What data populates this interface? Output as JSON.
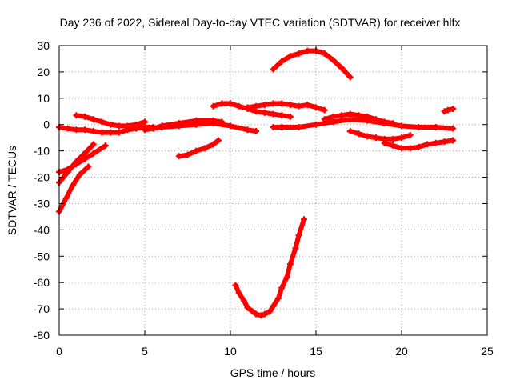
{
  "chart_data": {
    "type": "scatter",
    "title": "Day 236 of 2022, Sidereal Day-to-day VTEC variation (SDTVAR) for receiver hlfx",
    "xlabel": "GPS time / hours",
    "ylabel": "SDTVAR / TECUs",
    "xlim": [
      0,
      25
    ],
    "ylim": [
      -80,
      30
    ],
    "xticks": [
      0,
      5,
      10,
      15,
      20,
      25
    ],
    "yticks": [
      -80,
      -70,
      -60,
      -50,
      -40,
      -30,
      -20,
      -10,
      0,
      10,
      20,
      30
    ],
    "grid": true,
    "legend": "none",
    "color": "#ff0000",
    "series": [
      {
        "x": [
          0.0,
          0.5,
          1.0,
          1.4,
          2.0
        ],
        "y": [
          -22,
          -18,
          -14,
          -11.5,
          -7.5
        ]
      },
      {
        "x": [
          0.0,
          0.5,
          1.0,
          1.5,
          2.0,
          2.7
        ],
        "y": [
          -18,
          -17,
          -15,
          -13,
          -11,
          -8
        ]
      },
      {
        "x": [
          0.0,
          0.4,
          0.8,
          1.2,
          1.7
        ],
        "y": [
          -33,
          -28,
          -23,
          -19,
          -16
        ]
      },
      {
        "x": [
          0.0,
          0.5,
          1.0,
          1.5,
          2.0,
          2.5,
          3.0,
          3.5,
          4.0,
          4.5,
          5.0,
          5.5
        ],
        "y": [
          -1,
          -1.5,
          -2,
          -2,
          -2.5,
          -3,
          -3,
          -3,
          -2,
          -1.5,
          -1,
          -1
        ]
      },
      {
        "x": [
          1.0,
          1.5,
          2.0,
          2.5,
          3.0,
          3.5,
          4.0,
          4.5,
          5.0
        ],
        "y": [
          3.5,
          3,
          2,
          1,
          0,
          -0.5,
          -0.5,
          0,
          1
        ]
      },
      {
        "x": [
          5.0,
          5.5,
          6.0,
          7.0,
          8.0,
          9.0,
          10.0,
          11.0,
          11.5
        ],
        "y": [
          -2,
          -1.5,
          -1,
          -0.5,
          0,
          0.5,
          -0.5,
          -2,
          -2.5
        ]
      },
      {
        "x": [
          5.5,
          6.0,
          7.0,
          8.0,
          8.5,
          9.0
        ],
        "y": [
          -1.5,
          -0.5,
          0.5,
          1,
          1,
          1
        ]
      },
      {
        "x": [
          6.0,
          7.0,
          8.0,
          9.0,
          9.5
        ],
        "y": [
          -0.5,
          0.5,
          1.5,
          1.5,
          1
        ]
      },
      {
        "x": [
          7.0,
          7.5,
          8.0,
          8.5,
          9.0,
          9.3
        ],
        "y": [
          -12,
          -11.5,
          -10,
          -9,
          -7.5,
          -6
        ]
      },
      {
        "x": [
          9.0,
          9.5,
          10.0,
          10.5,
          11.0,
          11.5,
          12.0,
          12.5,
          13.0,
          13.5
        ],
        "y": [
          7,
          8,
          8,
          7,
          6,
          5,
          4.5,
          4,
          3.5,
          3
        ]
      },
      {
        "x": [
          11.0,
          11.5,
          12.0,
          12.5,
          13.0,
          13.5,
          14.0,
          14.5,
          15.0,
          15.5
        ],
        "y": [
          6.5,
          7,
          7.5,
          8,
          8,
          7.5,
          7,
          7.5,
          6.5,
          5.5
        ]
      },
      {
        "x": [
          12.5,
          13.0,
          13.5,
          14.0,
          14.5,
          15.0,
          15.5,
          16.0,
          16.5,
          17.0
        ],
        "y": [
          21,
          24,
          26,
          27,
          28,
          28,
          27,
          24.5,
          21.5,
          18
        ]
      },
      {
        "x": [
          10.3,
          10.5,
          10.8,
          11.0,
          11.3,
          11.5,
          11.8,
          12.0,
          12.3,
          12.5,
          12.8,
          13.0,
          13.3,
          13.5,
          13.8,
          14.0,
          14.3
        ],
        "y": [
          -61,
          -64,
          -67,
          -69.5,
          -71,
          -72,
          -72.5,
          -72,
          -71,
          -69,
          -66,
          -62,
          -58,
          -53,
          -47,
          -42,
          -36
        ]
      },
      {
        "x": [
          12.5,
          13.0,
          14.0,
          15.0,
          16.0,
          17.0,
          18.0,
          19.0,
          20.0,
          21.0,
          22.0,
          23.0
        ],
        "y": [
          -1,
          -1,
          -1,
          0,
          1,
          2,
          1.5,
          0.5,
          -0.5,
          -1,
          -1,
          -1.5
        ]
      },
      {
        "x": [
          15.5,
          16.0,
          16.5,
          17.0,
          17.5,
          18.0,
          18.5,
          19.0,
          19.5
        ],
        "y": [
          2,
          3,
          3.5,
          4,
          3.5,
          3,
          2,
          1,
          0.5
        ]
      },
      {
        "x": [
          17.0,
          17.5,
          18.0,
          18.5,
          19.0,
          19.5,
          20.0,
          20.5
        ],
        "y": [
          -2.5,
          -3.5,
          -4.5,
          -5,
          -5.5,
          -5.5,
          -5,
          -4
        ]
      },
      {
        "x": [
          19.0,
          19.5,
          20.0,
          20.5,
          21.0,
          21.5,
          22.0,
          22.5,
          23.0
        ],
        "y": [
          -7,
          -8,
          -9,
          -9,
          -8.5,
          -7.5,
          -7,
          -6.5,
          -6
        ]
      },
      {
        "x": [
          22.5,
          22.7,
          23.0
        ],
        "y": [
          5,
          5.5,
          6
        ]
      }
    ]
  }
}
